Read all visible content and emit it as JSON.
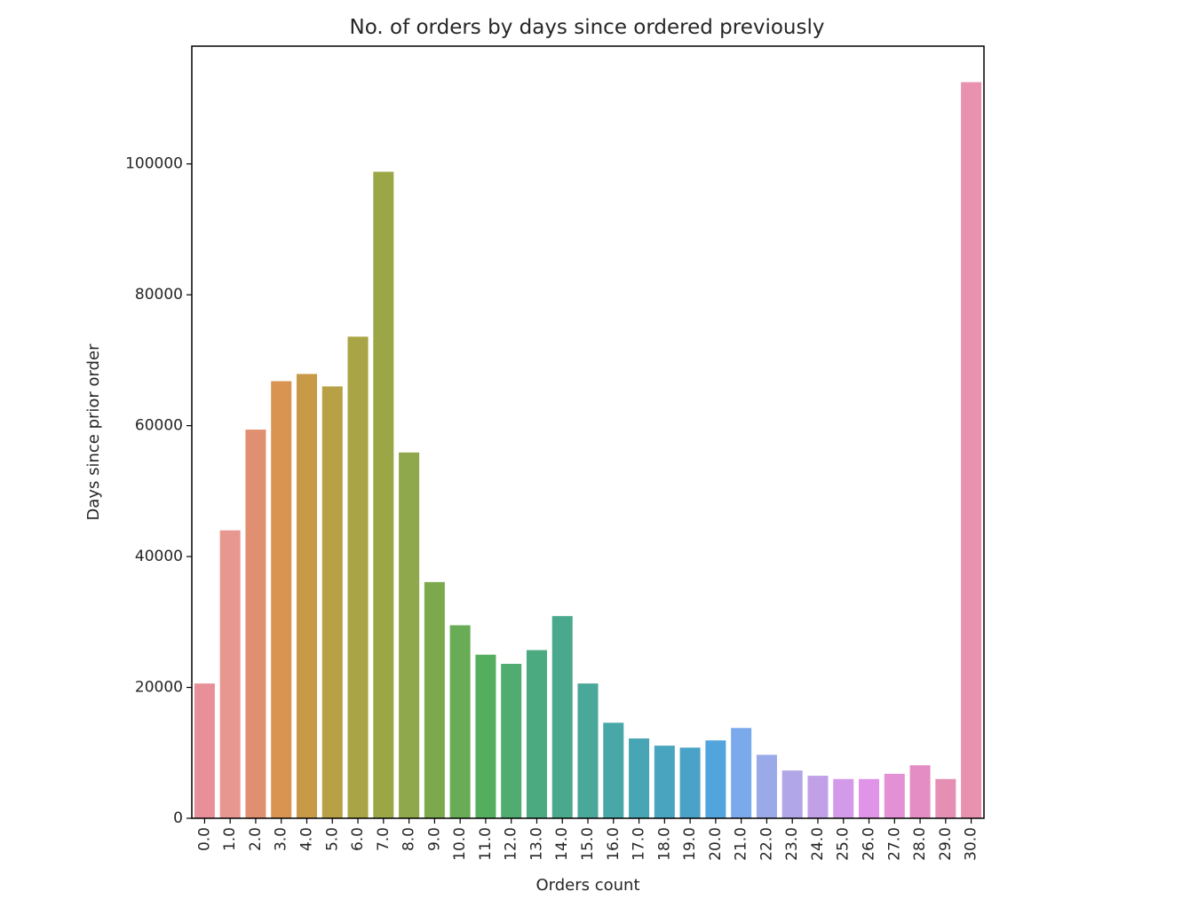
{
  "chart_data": {
    "type": "bar",
    "title": "No. of orders by days since ordered previously",
    "xlabel": "Orders count",
    "ylabel": "Days since prior order",
    "categories": [
      "0.0",
      "1.0",
      "2.0",
      "3.0",
      "4.0",
      "5.0",
      "6.0",
      "7.0",
      "8.0",
      "9.0",
      "10.0",
      "11.0",
      "12.0",
      "13.0",
      "14.0",
      "15.0",
      "16.0",
      "17.0",
      "18.0",
      "19.0",
      "20.0",
      "21.0",
      "22.0",
      "23.0",
      "24.0",
      "25.0",
      "26.0",
      "27.0",
      "28.0",
      "29.0",
      "30.0"
    ],
    "values": [
      20600,
      44000,
      59400,
      66800,
      67900,
      66000,
      73600,
      98800,
      55900,
      36100,
      29500,
      25000,
      23600,
      25700,
      30900,
      20600,
      14600,
      12200,
      11100,
      10800,
      11900,
      13800,
      9700,
      7300,
      6500,
      6000,
      6000,
      6800,
      8100,
      6000,
      112500
    ],
    "colors": [
      "#e8909a",
      "#e89790",
      "#e09070",
      "#d99452",
      "#c89a48",
      "#b8a046",
      "#a9a445",
      "#9ba746",
      "#8ea84b",
      "#7da94e",
      "#68ad55",
      "#54ae5e",
      "#50ac70",
      "#4caa80",
      "#4aa98c",
      "#4aa89a",
      "#48a8a8",
      "#48a6b4",
      "#49a4bf",
      "#4aa2c8",
      "#52a5dc",
      "#7aa9ec",
      "#9aa9e8",
      "#b0a6e8",
      "#c2a0e8",
      "#d49aea",
      "#e094e8",
      "#e490d4",
      "#e48dc4",
      "#e68fb4",
      "#e892b0"
    ],
    "yticks": [
      0,
      20000,
      40000,
      60000,
      80000,
      100000
    ],
    "ylim": [
      0,
      118000
    ],
    "grid": false,
    "legend": "none"
  }
}
